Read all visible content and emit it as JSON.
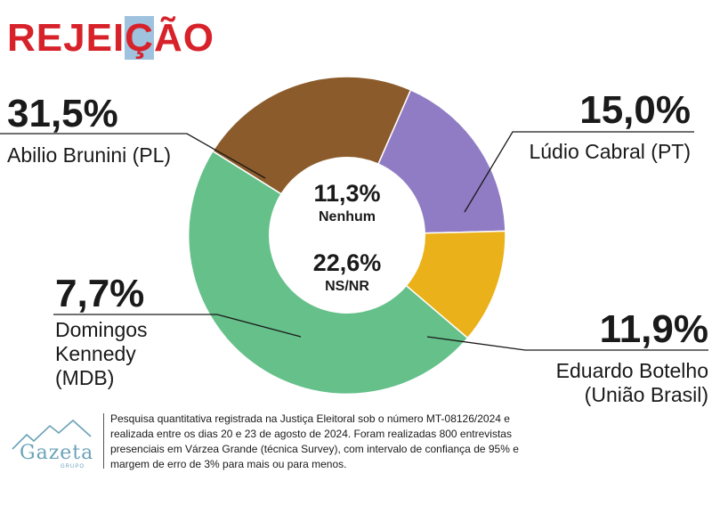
{
  "title": {
    "before": "REJEI",
    "highlight": "Ç",
    "after": "ÃO"
  },
  "chart_data": {
    "type": "pie",
    "subtype": "donut",
    "slices": [
      {
        "label_lines": [
          "Abilio Brunini (PL)"
        ],
        "pct_text": "31,5%",
        "value": 31.5,
        "color": "#65c08a"
      },
      {
        "label_lines": [
          "Lúdio Cabral (PT)"
        ],
        "pct_text": "15,0%",
        "value": 15.0,
        "color": "#8c5b2b"
      },
      {
        "label_lines": [
          "Eduardo Botelho",
          "(União Brasil)"
        ],
        "pct_text": "11,9%",
        "value": 11.9,
        "color": "#8f7cc4"
      },
      {
        "label_lines": [
          "Domingos",
          "Kennedy",
          "(MDB)"
        ],
        "pct_text": "7,7%",
        "value": 7.7,
        "color": "#ebb11a"
      }
    ],
    "center": [
      {
        "pct_text": "11,3%",
        "label": "Nenhum",
        "value": 11.3
      },
      {
        "pct_text": "22,6%",
        "label": "NS/NR",
        "value": 22.6
      }
    ]
  },
  "footer": {
    "logo_text": "Gazeta",
    "logo_sub": "GRUPO",
    "note": "Pesquisa quantitativa registrada na Justiça Eleitoral sob o número MT-08126/2024 e realizada entre os dias 20 e 23 de agosto de 2024. Foram realizadas 800 entrevistas presenciais em Várzea Grande (técnica Survey), com intervalo de confiança de 95% e margem de erro de 3% para mais ou para menos."
  }
}
